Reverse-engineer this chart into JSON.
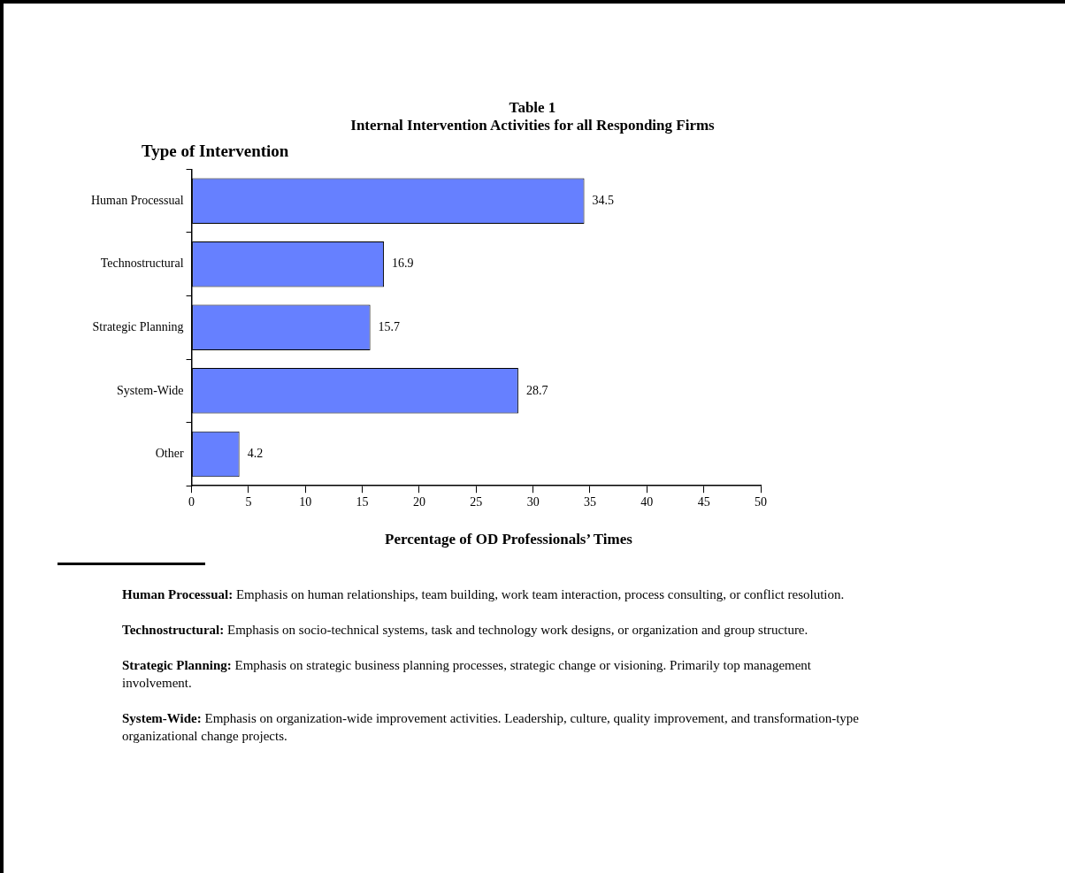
{
  "chart_data": {
    "type": "bar",
    "orientation": "horizontal",
    "title": "Table 1\nInternal Intervention Activities for all Responding Firms",
    "ylabel": "Type of Intervention",
    "xlabel": "Percentage of OD Professionals’ Times",
    "categories": [
      "Human Processual",
      "Technostructural",
      "Strategic Planning",
      "System-Wide",
      "Other"
    ],
    "values": [
      34.5,
      16.9,
      15.7,
      28.7,
      4.2
    ],
    "color": "#6680ff",
    "data_labels": true,
    "xlim": [
      0,
      50
    ],
    "xticks": [
      0,
      5,
      10,
      15,
      20,
      25,
      30,
      35,
      40,
      45,
      50
    ],
    "grid": false,
    "legend": false,
    "annotations": [
      "Human Processual: Emphasis on human relationships, team building, work team interaction, process consulting, or conflict resolution.",
      "Technostructural: Emphasis on socio-technical systems, task and technology work designs, or organization and group structure.",
      "Strategic Planning: Emphasis on strategic business planning processes, strategic change or visioning. Primarily top management involvement.",
      "System-Wide: Emphasis on organization-wide improvement activities. Leadership, culture, quality improvement, and transformation-type organizational change projects."
    ]
  }
}
